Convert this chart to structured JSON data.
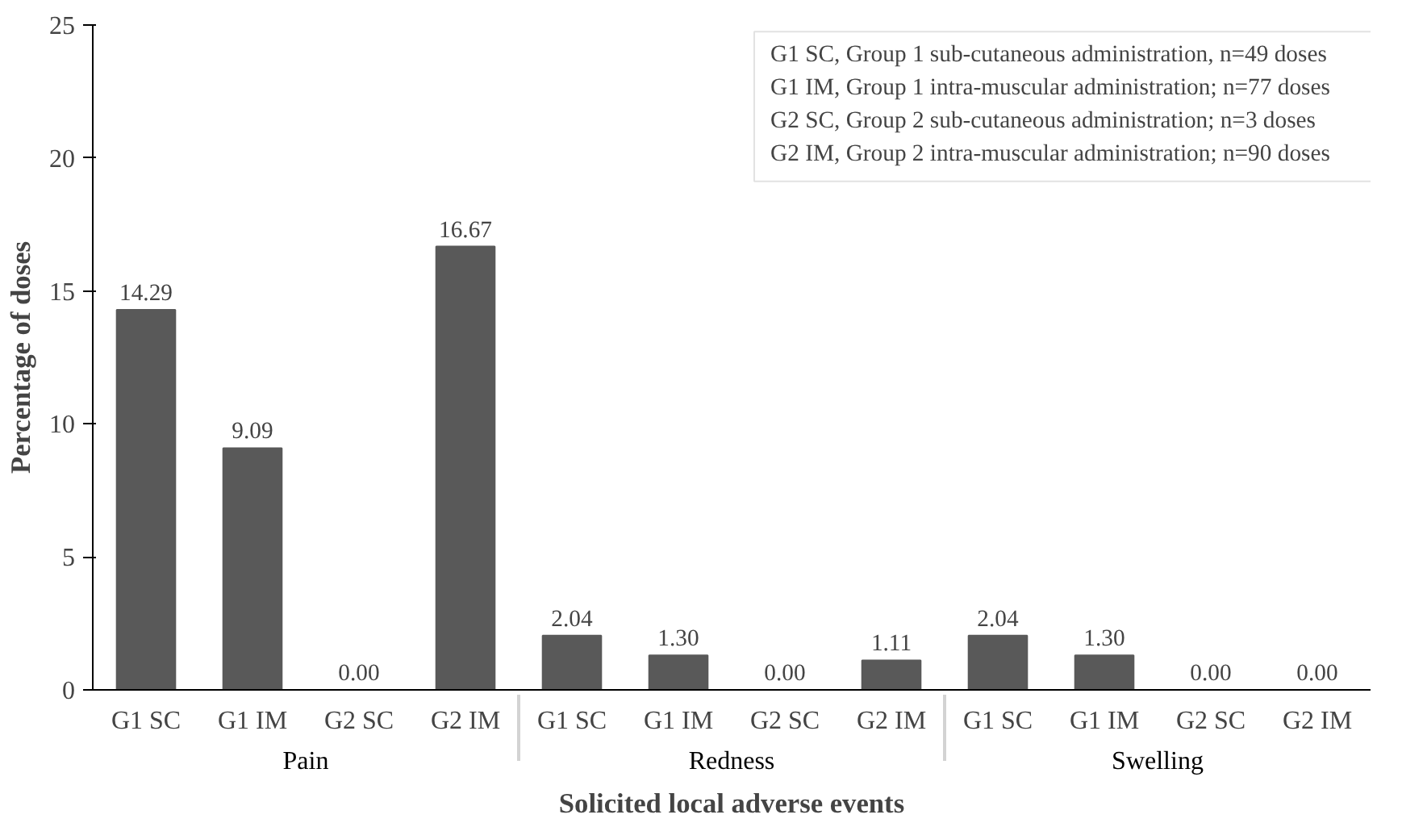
{
  "chart_data": {
    "type": "bar",
    "xlabel": "Solicited local adverse events",
    "ylabel": "Percentage of doses",
    "categories": [
      "Pain",
      "Redness",
      "Swelling"
    ],
    "series": [
      {
        "name": "G1 SC",
        "color": "#595959",
        "values": [
          14.29,
          2.04,
          2.04
        ],
        "value_labels": [
          "14.29",
          "2.04",
          "2.04"
        ]
      },
      {
        "name": "G1 IM",
        "color": "#595959",
        "values": [
          9.09,
          1.3,
          1.3
        ],
        "value_labels": [
          "9.09",
          "1.30",
          "1.30"
        ]
      },
      {
        "name": "G2 SC",
        "color": "#595959",
        "values": [
          0,
          0,
          0
        ],
        "value_labels": [
          "0.00",
          "0.00",
          "0.00"
        ]
      },
      {
        "name": "G2 IM",
        "color": "#595959",
        "values": [
          16.67,
          1.11,
          0
        ],
        "value_labels": [
          "16.67",
          "1.11",
          "0.00"
        ]
      }
    ],
    "ylim": [
      0,
      25
    ],
    "yticks": [
      0,
      5,
      10,
      15,
      20,
      25
    ],
    "grid": false,
    "annotations": [
      "G1 SC, Group 1 sub-cutaneous administration, n=49 doses",
      "G1 IM, Group 1 intra-muscular administration; n=77 doses",
      "G2 SC, Group 2 sub-cutaneous administration; n=3 doses",
      "G2 IM, Group 2 intra-muscular administration; n=90 doses"
    ]
  }
}
